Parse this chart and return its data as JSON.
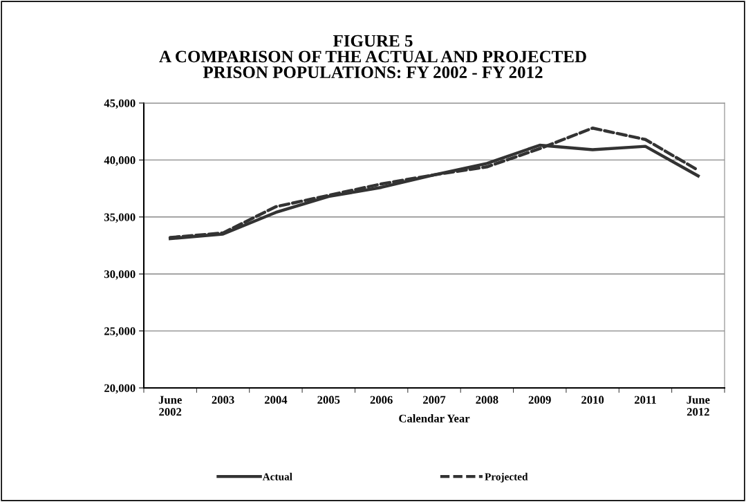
{
  "chart_data": {
    "type": "line",
    "title": "FIGURE 5\nA COMPARISON OF THE ACTUAL AND PROJECTED\nPRISON POPULATIONS: FY 2002 - FY 2012",
    "xlabel": "Calendar Year",
    "categories": [
      "June\n2002",
      "2003",
      "2004",
      "2005",
      "2006",
      "2007",
      "2008",
      "2009",
      "2010",
      "2011",
      "June\n2012"
    ],
    "series": [
      {
        "name": "Actual",
        "color": "#333333",
        "line_style": "solid",
        "values": [
          33100,
          33500,
          35400,
          36800,
          37600,
          38700,
          39700,
          41300,
          40900,
          41200,
          38600
        ]
      },
      {
        "name": "Projected",
        "color": "#333333",
        "line_style": "dashed",
        "values": [
          33200,
          33600,
          35900,
          36900,
          37900,
          38700,
          39400,
          41000,
          42800,
          41800,
          39100
        ]
      }
    ],
    "ylim": [
      20000,
      45000
    ],
    "yticks": [
      {
        "value": 20000,
        "label": "20,000"
      },
      {
        "value": 25000,
        "label": "25,000"
      },
      {
        "value": 30000,
        "label": "30,000"
      },
      {
        "value": 35000,
        "label": "35,000"
      },
      {
        "value": 40000,
        "label": "40,000"
      },
      {
        "value": 45000,
        "label": "45,000"
      }
    ],
    "grid": "y",
    "legend": "bottom",
    "marker": "none"
  }
}
